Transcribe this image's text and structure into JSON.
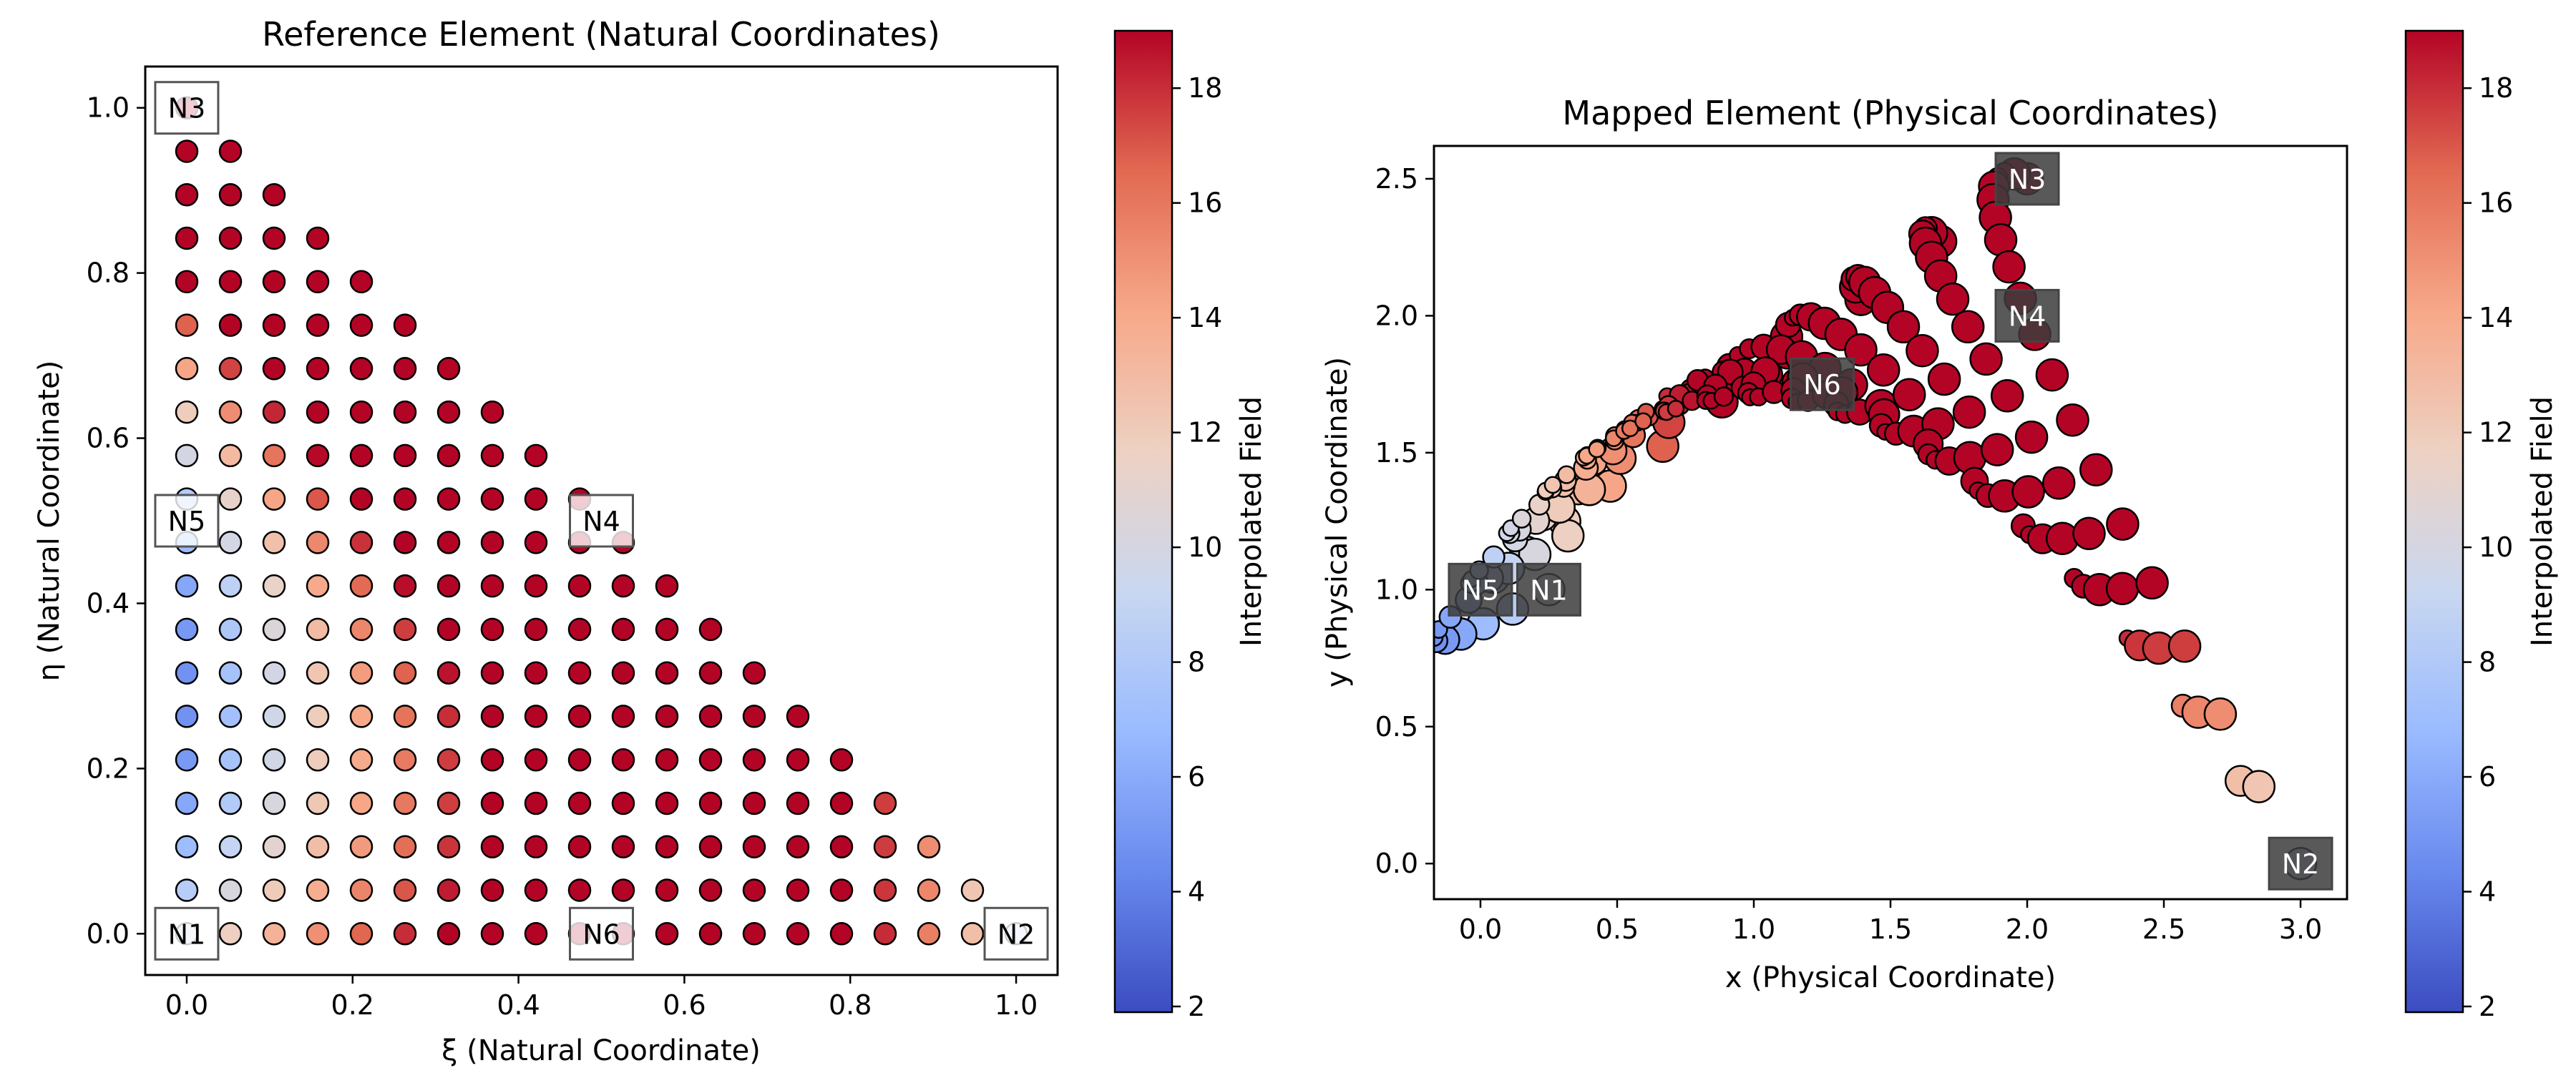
{
  "colormap": {
    "name": "coolwarm",
    "stops": [
      "#3b4cc0",
      "#6889ee",
      "#9abbff",
      "#c9d7f0",
      "#edd1c2",
      "#f7a889",
      "#e26952",
      "#b40426"
    ]
  },
  "chart_data": [
    {
      "type": "scatter",
      "title": "Reference Element (Natural Coordinates)",
      "xlabel": "ξ (Natural Coordinate)",
      "ylabel": "η (Natural Coordinate)",
      "xlim": [
        -0.05,
        1.05
      ],
      "ylim": [
        -0.05,
        1.05
      ],
      "xticks": [
        "0.0",
        "0.2",
        "0.4",
        "0.6",
        "0.8",
        "1.0"
      ],
      "yticks": [
        "0.0",
        "0.2",
        "0.4",
        "0.6",
        "0.8",
        "1.0"
      ],
      "grid": false,
      "sampling": {
        "grid_n": 20,
        "xi_min": 0.0,
        "xi_max": 1.0,
        "eta_min": 0.0,
        "eta_max": 1.0
      },
      "field_range": [
        1.9,
        19.0
      ],
      "node_label_style": "outlined",
      "node_labels": [
        {
          "name": "N1",
          "xi": 0.0,
          "eta": 0.0
        },
        {
          "name": "N2",
          "xi": 1.0,
          "eta": 0.0
        },
        {
          "name": "N3",
          "xi": 0.0,
          "eta": 1.0
        },
        {
          "name": "N4",
          "xi": 0.5,
          "eta": 0.5
        },
        {
          "name": "N5",
          "xi": 0.0,
          "eta": 0.5
        },
        {
          "name": "N6",
          "xi": 0.5,
          "eta": 0.0
        }
      ],
      "colorbar": {
        "label": "Interpolated Field",
        "range": [
          1.9,
          19.0
        ],
        "ticks": [
          "2",
          "4",
          "6",
          "8",
          "10",
          "12",
          "14",
          "16",
          "18"
        ]
      }
    },
    {
      "type": "scatter",
      "title": "Mapped Element (Physical Coordinates)",
      "xlabel": "x (Physical Coordinate)",
      "ylabel": "y (Physical Coordinate)",
      "xlim": [
        -0.17,
        3.17
      ],
      "ylim": [
        -0.13,
        2.62
      ],
      "xticks": [
        "0.0",
        "0.5",
        "1.0",
        "1.5",
        "2.0",
        "2.5",
        "3.0"
      ],
      "yticks": [
        "0.0",
        "0.5",
        "1.0",
        "1.5",
        "2.0",
        "2.5"
      ],
      "grid": false,
      "field_range": [
        1.9,
        19.0
      ],
      "node_label_style": "filled-dark",
      "node_labels": [
        {
          "name": "N1",
          "x": 0.25,
          "y": 1.0
        },
        {
          "name": "N2",
          "x": 3.0,
          "y": 0.0
        },
        {
          "name": "N3",
          "x": 2.0,
          "y": 2.5
        },
        {
          "name": "N4",
          "x": 2.0,
          "y": 2.0
        },
        {
          "name": "N5",
          "x": 0.0,
          "y": 1.0
        },
        {
          "name": "N6",
          "x": 1.25,
          "y": 1.75
        }
      ],
      "colorbar": {
        "label": "Interpolated Field",
        "range": [
          1.9,
          19.0
        ],
        "ticks": [
          "2",
          "4",
          "6",
          "8",
          "10",
          "12",
          "14",
          "16",
          "18"
        ]
      }
    }
  ]
}
